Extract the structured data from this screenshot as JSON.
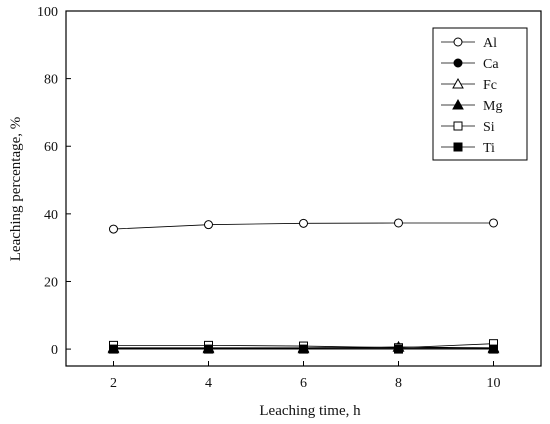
{
  "chart_data": {
    "type": "line",
    "xlabel": "Leaching time, h",
    "ylabel": "Leaching percentage, %",
    "xlim": [
      1,
      11
    ],
    "ylim": [
      -5,
      100
    ],
    "x_ticks": [
      2,
      4,
      6,
      8,
      10
    ],
    "y_ticks": [
      0,
      20,
      40,
      60,
      80,
      100
    ],
    "legend_position": "top-right",
    "grid": false,
    "series": [
      {
        "name": "Al",
        "marker": "circle-open",
        "x": [
          2,
          4,
          6,
          8,
          10
        ],
        "values": [
          35.5,
          36.8,
          37.2,
          37.3,
          37.3
        ]
      },
      {
        "name": "Ca",
        "marker": "circle-filled",
        "x": [
          2,
          4,
          6,
          8,
          10
        ],
        "values": [
          0.2,
          0.2,
          0.2,
          0.2,
          0.2
        ]
      },
      {
        "name": "Fc",
        "marker": "triangle-open",
        "x": [
          2,
          4,
          6,
          8,
          10
        ],
        "values": [
          0.4,
          0.4,
          0.4,
          0.6,
          0.4
        ]
      },
      {
        "name": "Mg",
        "marker": "triangle-filled",
        "x": [
          2,
          4,
          6,
          8,
          10
        ],
        "values": [
          0.1,
          0.1,
          0.1,
          0.6,
          0.1
        ]
      },
      {
        "name": "Si",
        "marker": "square-open",
        "x": [
          2,
          4,
          6,
          8,
          10
        ],
        "values": [
          1.1,
          1.1,
          0.9,
          0.4,
          1.6
        ]
      },
      {
        "name": "Ti",
        "marker": "square-filled",
        "x": [
          2,
          4,
          6,
          8,
          10
        ],
        "values": [
          0.0,
          0.0,
          0.0,
          0.0,
          0.0
        ]
      }
    ]
  }
}
